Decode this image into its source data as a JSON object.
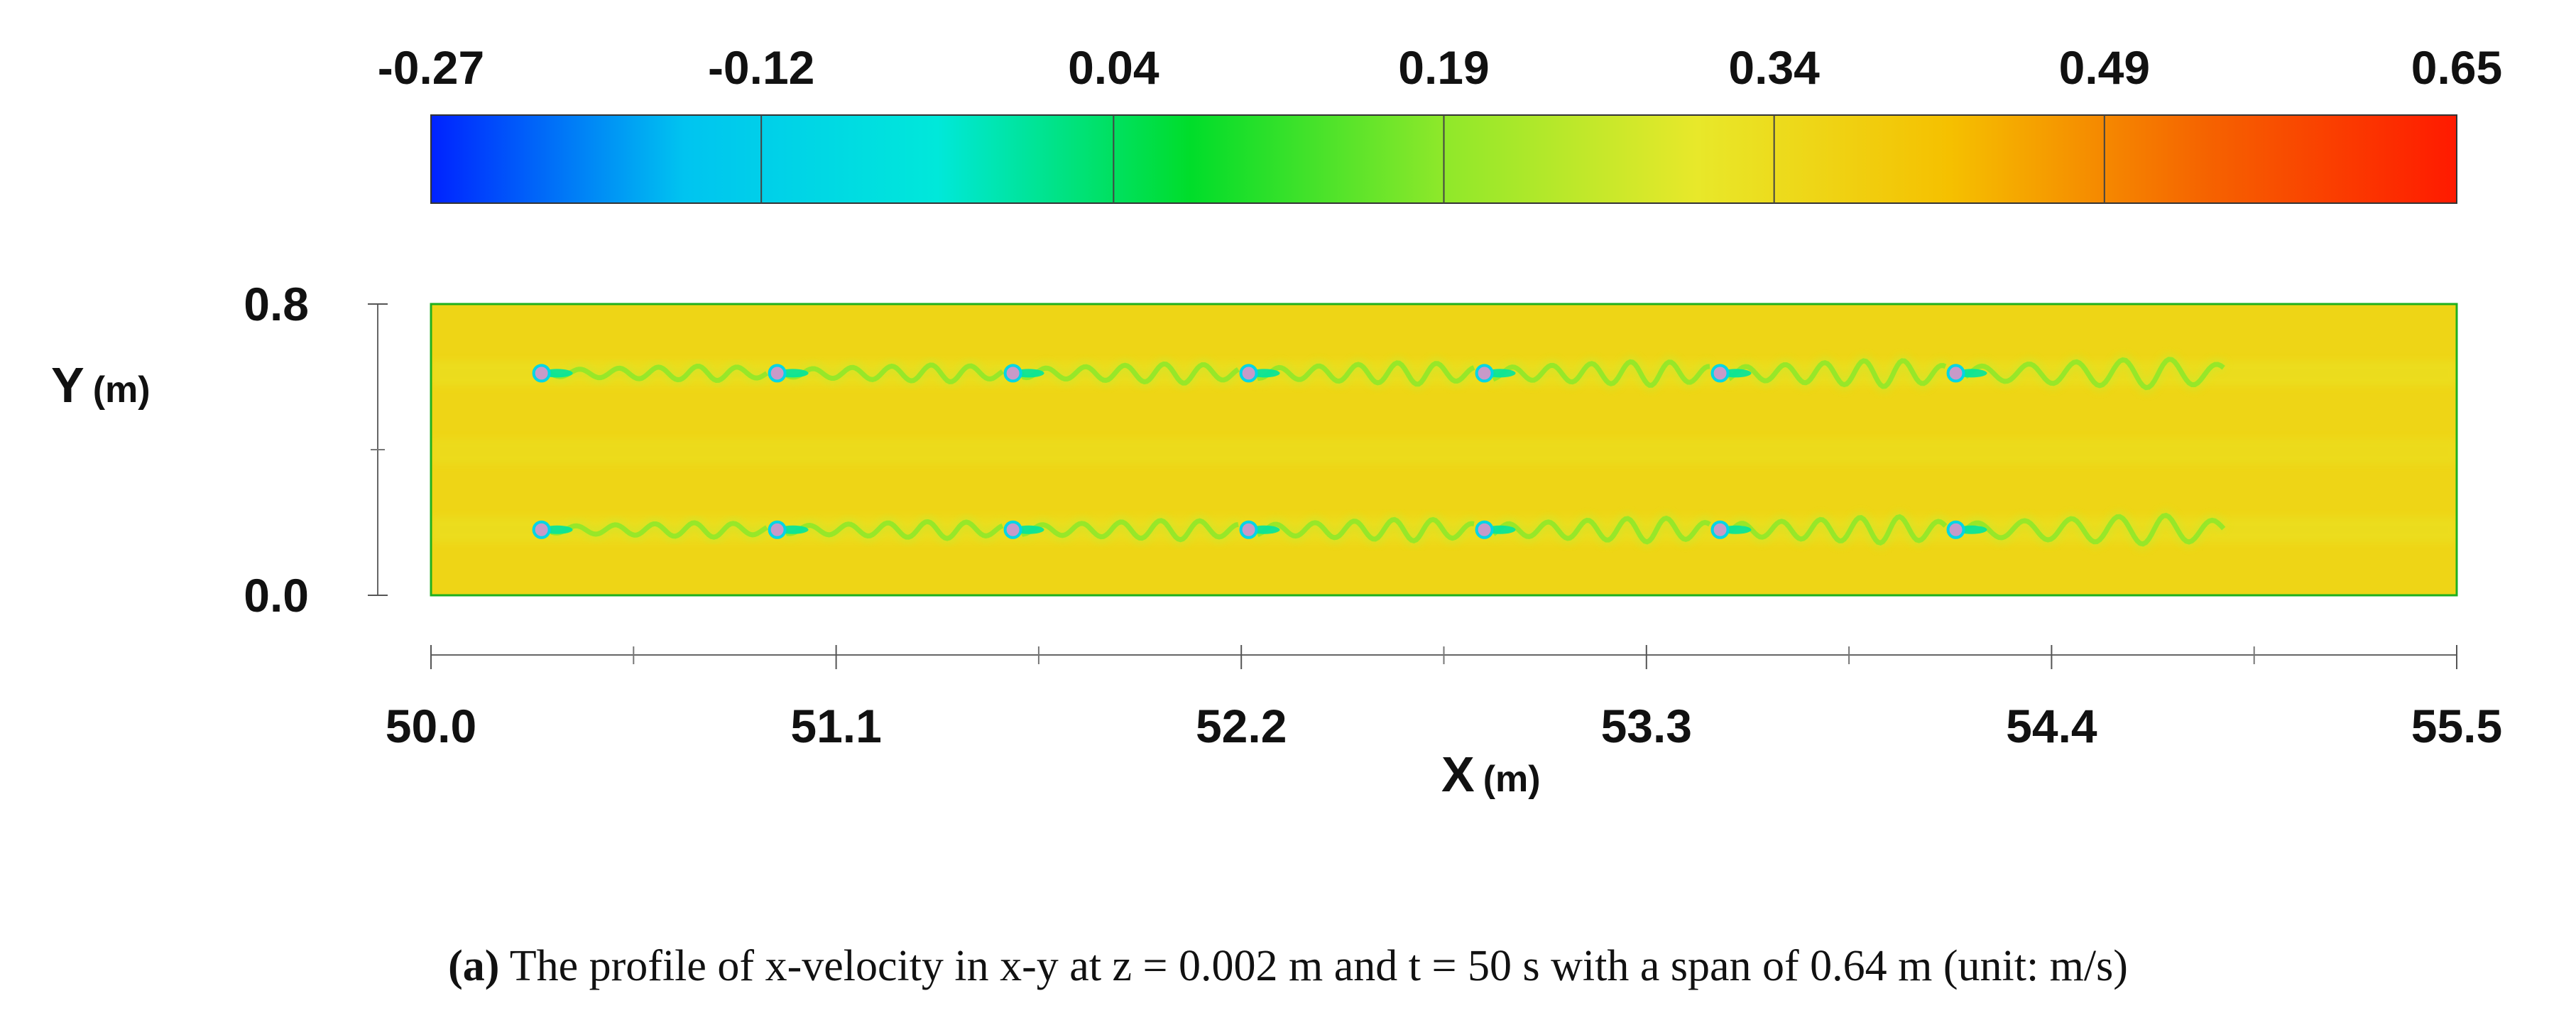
{
  "chart_data": {
    "type": "heatmap",
    "title": "x-velocity profile in x-y plane",
    "colorbar": {
      "ticks": [
        -0.27,
        -0.12,
        0.04,
        0.19,
        0.34,
        0.49,
        0.65
      ],
      "tick_labels": [
        "-0.27",
        "-0.12",
        "0.04",
        "0.19",
        "0.34",
        "0.49",
        "0.65"
      ],
      "min": -0.27,
      "max": 0.65,
      "colors": [
        "#0022ff",
        "#00c4f0",
        "#00e8da",
        "#00dd2a",
        "#8fe82a",
        "#e8e82a",
        "#f5c000",
        "#f56400",
        "#ff1a00"
      ],
      "placement": "top"
    },
    "x_axis": {
      "label": "X",
      "unit": "(m)",
      "range": [
        50.0,
        55.5
      ],
      "ticks": [
        50.0,
        51.1,
        52.2,
        53.3,
        54.4,
        55.5
      ],
      "tick_labels": [
        "50.0",
        "51.1",
        "52.2",
        "53.3",
        "54.4",
        "55.5"
      ],
      "minor_ticks": [
        50.55,
        51.65,
        52.75,
        53.85,
        54.95
      ]
    },
    "y_axis": {
      "label": "Y",
      "unit": "(m)",
      "range": [
        0.0,
        0.8
      ],
      "ticks": [
        0.0,
        0.8
      ],
      "tick_labels": [
        "0.0",
        "0.8"
      ],
      "minor_ticks": [
        0.4
      ]
    },
    "background_value": 0.36,
    "cylinder_rows_y": [
      0.61,
      0.18
    ],
    "cylinder_x": [
      50.3,
      50.94,
      51.58,
      52.22,
      52.86,
      53.5,
      54.14
    ],
    "wake_value": 0.19,
    "cylinder_value": -0.1
  },
  "caption": {
    "label": "(a)",
    "text": "The profile of x-velocity in x-y at z = 0.002 m and t = 50 s with a span of 0.64 m (unit: m/s)"
  }
}
